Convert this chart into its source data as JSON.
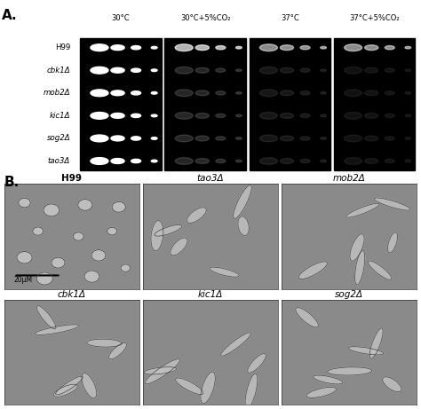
{
  "panel_A_label": "A.",
  "panel_B_label": "B.",
  "panel_A_col_labels": [
    "30°C",
    "30°C+5%CO₂",
    "37°C",
    "37°C+5%CO₂"
  ],
  "panel_A_row_labels": [
    "H99",
    "cbk1Δ",
    "mob2Δ",
    "kic1Δ",
    "sog2Δ",
    "tao3Δ"
  ],
  "panel_A_row_labels_italic": [
    false,
    true,
    true,
    true,
    true,
    true
  ],
  "panel_B_top_labels": [
    "H99",
    "tao3Δ",
    "mob2Δ"
  ],
  "panel_B_top_labels_italic": [
    false,
    true,
    true
  ],
  "panel_B_bot_labels": [
    "cbk1Δ",
    "kic1Δ",
    "sog2Δ"
  ],
  "panel_B_bot_labels_italic": [
    true,
    true,
    true
  ],
  "scale_bar_text": "20μM",
  "fig_bg": "#ffffff",
  "mic_gray": "#8a8a8a"
}
